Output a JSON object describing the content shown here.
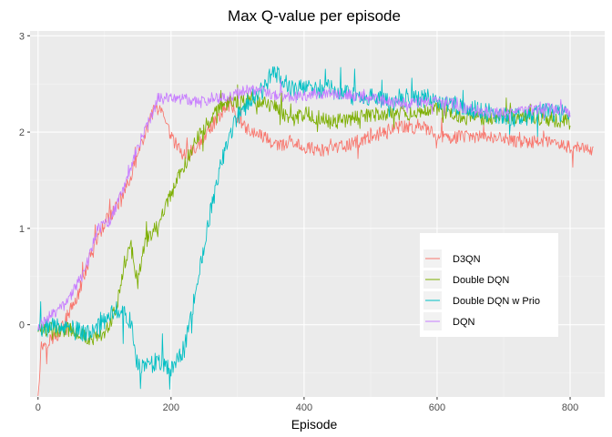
{
  "chart_data": {
    "type": "line",
    "title": "Max Q-value per episode",
    "xlabel": "Episode",
    "ylabel": "",
    "xlim": [
      -12,
      852
    ],
    "ylim": [
      -0.75,
      3.05
    ],
    "x_ticks": [
      0,
      200,
      400,
      600,
      800
    ],
    "y_ticks": [
      0,
      1,
      2,
      3
    ],
    "grid": true,
    "legend_position": "right",
    "series": [
      {
        "name": "D3QN",
        "color": "#F8766D",
        "noise": 0.07,
        "x": [
          0,
          5,
          30,
          60,
          80,
          100,
          120,
          140,
          160,
          175,
          185,
          200,
          220,
          240,
          260,
          280,
          290,
          300,
          320,
          340,
          360,
          380,
          400,
          430,
          460,
          500,
          540,
          580,
          600,
          640,
          680,
          720,
          760,
          800,
          835
        ],
        "y": [
          -0.72,
          -0.22,
          -0.1,
          0.3,
          0.75,
          1.05,
          1.25,
          1.55,
          1.95,
          2.25,
          2.2,
          1.95,
          1.75,
          1.85,
          2.05,
          2.25,
          2.3,
          2.15,
          2.0,
          1.95,
          1.85,
          1.9,
          1.85,
          1.8,
          1.85,
          1.95,
          2.05,
          2.05,
          1.95,
          1.95,
          1.95,
          1.9,
          1.9,
          1.85,
          1.8
        ]
      },
      {
        "name": "Double DQN",
        "color": "#7CAE00",
        "noise": 0.08,
        "x": [
          0,
          20,
          50,
          80,
          100,
          110,
          120,
          130,
          140,
          150,
          160,
          180,
          200,
          220,
          240,
          260,
          280,
          300,
          320,
          340,
          360,
          380,
          400,
          440,
          480,
          520,
          560,
          600,
          640,
          680,
          720,
          760,
          800
        ],
        "y": [
          -0.05,
          -0.05,
          -0.05,
          -0.15,
          -0.1,
          0.05,
          0.25,
          0.65,
          0.8,
          0.45,
          0.85,
          1.05,
          1.35,
          1.65,
          1.95,
          2.15,
          2.3,
          2.3,
          2.35,
          2.3,
          2.25,
          2.1,
          2.2,
          2.1,
          2.15,
          2.2,
          2.2,
          2.25,
          2.15,
          2.15,
          2.15,
          2.15,
          2.1
        ]
      },
      {
        "name": "Double DQN w Prio",
        "color": "#00BFC4",
        "noise": 0.1,
        "x": [
          0,
          20,
          50,
          80,
          100,
          120,
          140,
          150,
          160,
          180,
          200,
          220,
          240,
          260,
          280,
          300,
          320,
          340,
          350,
          360,
          380,
          400,
          440,
          480,
          520,
          560,
          600,
          640,
          680,
          720,
          760,
          800
        ],
        "y": [
          -0.05,
          -0.02,
          -0.05,
          -0.1,
          0.05,
          0.15,
          0.05,
          -0.45,
          -0.45,
          -0.4,
          -0.45,
          -0.25,
          0.45,
          1.2,
          1.8,
          2.15,
          2.35,
          2.45,
          2.6,
          2.6,
          2.45,
          2.45,
          2.45,
          2.35,
          2.35,
          2.35,
          2.35,
          2.25,
          2.2,
          2.15,
          2.2,
          2.2
        ]
      },
      {
        "name": "DQN",
        "color": "#C77CFF",
        "noise": 0.06,
        "x": [
          0,
          10,
          40,
          70,
          90,
          110,
          130,
          150,
          170,
          180,
          200,
          220,
          240,
          260,
          280,
          300,
          320,
          350,
          380,
          420,
          460,
          500,
          540,
          580,
          600,
          640,
          680,
          720,
          760,
          800
        ],
        "y": [
          -0.05,
          0.05,
          0.2,
          0.55,
          1.0,
          1.1,
          1.45,
          1.85,
          2.15,
          2.35,
          2.35,
          2.35,
          2.3,
          2.35,
          2.35,
          2.4,
          2.45,
          2.4,
          2.35,
          2.4,
          2.4,
          2.35,
          2.3,
          2.3,
          2.35,
          2.25,
          2.2,
          2.2,
          2.25,
          2.2
        ]
      }
    ]
  }
}
